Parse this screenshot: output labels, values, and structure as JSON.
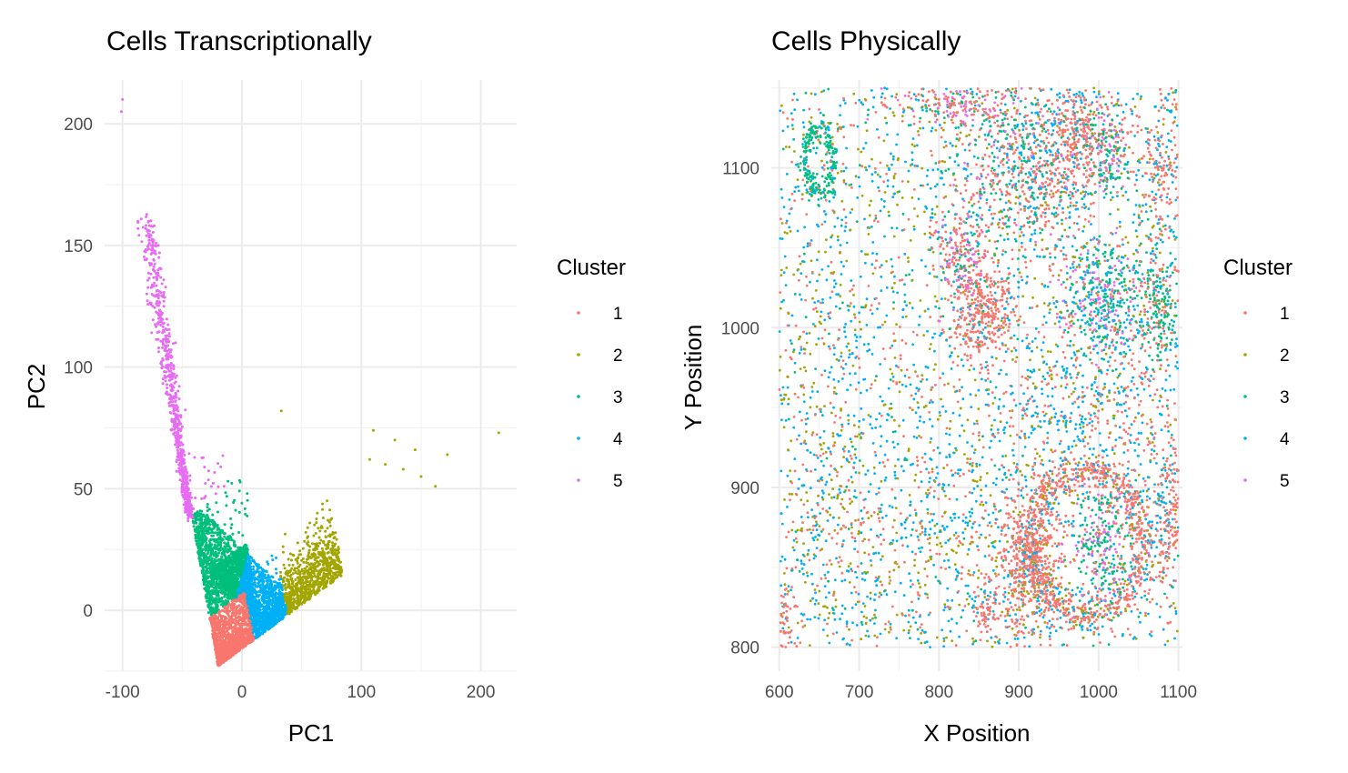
{
  "colors": {
    "cluster_1": "#F8766D",
    "cluster_2": "#A3A500",
    "cluster_3": "#00BF7D",
    "cluster_4": "#00B0F6",
    "cluster_5": "#E76BF3",
    "grid": "#ebebeb",
    "tick_text": "#4d4d4d"
  },
  "chart_data": [
    {
      "type": "scatter",
      "title": "Cells Transcriptionally",
      "xlabel": "PC1",
      "ylabel": "PC2",
      "xlim": [
        -115,
        230
      ],
      "ylim": [
        -25,
        218
      ],
      "xticks": [
        -100,
        0,
        100,
        200
      ],
      "xtick_labels": [
        "-100",
        "0",
        "100",
        "200"
      ],
      "yticks": [
        0,
        50,
        100,
        150,
        200
      ],
      "ytick_labels": [
        "0",
        "50",
        "100",
        "150",
        "200"
      ],
      "grid": true,
      "legend": {
        "title": "Cluster",
        "position": "right",
        "entries": [
          "1",
          "2",
          "3",
          "4",
          "5"
        ]
      },
      "series": [
        {
          "name": "1",
          "color": "#F8766D",
          "description_points": [
            [
              -20,
              -23
            ],
            [
              -28,
              0
            ],
            [
              -18,
              10
            ],
            [
              -10,
              -10
            ],
            [
              5,
              -5
            ],
            [
              0,
              -15
            ]
          ]
        },
        {
          "name": "2",
          "color": "#A3A500",
          "description_points": [
            [
              35,
              15
            ],
            [
              60,
              25
            ],
            [
              80,
              35
            ],
            [
              100,
              45
            ],
            [
              130,
              68
            ],
            [
              215,
              73
            ],
            [
              33,
              82
            ]
          ]
        },
        {
          "name": "3",
          "color": "#00BF7D",
          "description_points": [
            [
              -45,
              40
            ],
            [
              -30,
              25
            ],
            [
              -25,
              10
            ],
            [
              -20,
              30
            ],
            [
              -10,
              45
            ]
          ]
        },
        {
          "name": "4",
          "color": "#00B0F6",
          "description_points": [
            [
              5,
              10
            ],
            [
              15,
              0
            ],
            [
              25,
              5
            ],
            [
              30,
              20
            ],
            [
              10,
              25
            ],
            [
              35,
              -5
            ]
          ]
        },
        {
          "name": "5",
          "color": "#E76BF3",
          "description_points": [
            [
              -100,
              210
            ],
            [
              -75,
              160
            ],
            [
              -65,
              120
            ],
            [
              -55,
              90
            ],
            [
              -48,
              60
            ],
            [
              -45,
              45
            ]
          ]
        }
      ]
    },
    {
      "type": "scatter",
      "title": "Cells Physically",
      "xlabel": "X Position",
      "ylabel": "Y Position",
      "xlim": [
        590,
        1105
      ],
      "ylim": [
        785,
        1155
      ],
      "xticks": [
        600,
        700,
        800,
        900,
        1000,
        1100
      ],
      "xtick_labels": [
        "600",
        "700",
        "800",
        "900",
        "1000",
        "1100"
      ],
      "yticks": [
        800,
        900,
        1000,
        1100
      ],
      "ytick_labels": [
        "800",
        "900",
        "1000",
        "1100"
      ],
      "grid": true,
      "data_extent": {
        "x": [
          600,
          1100
        ],
        "y": [
          800,
          1150
        ]
      },
      "legend": {
        "title": "Cluster",
        "position": "right",
        "entries": [
          "1",
          "2",
          "3",
          "4",
          "5"
        ]
      },
      "series": [
        {
          "name": "1",
          "color": "#F8766D",
          "regions": [
            "ring around (990, 870)",
            "(855, 1010)",
            "(970, 1120)",
            "(910, 860)"
          ]
        },
        {
          "name": "2",
          "color": "#A3A500",
          "regions": [
            "scattered throughout"
          ]
        },
        {
          "name": "3",
          "color": "#00BF7D",
          "regions": [
            "(650, 1105)",
            "(1000, 1020)",
            "(1075, 1010)",
            "(1010, 880)"
          ]
        },
        {
          "name": "4",
          "color": "#00B0F6",
          "regions": [
            "scattered throughout"
          ]
        },
        {
          "name": "5",
          "color": "#E76BF3",
          "regions": [
            "(1000, 870)",
            "(1010, 1020)",
            "(830, 1130)"
          ]
        }
      ]
    }
  ]
}
